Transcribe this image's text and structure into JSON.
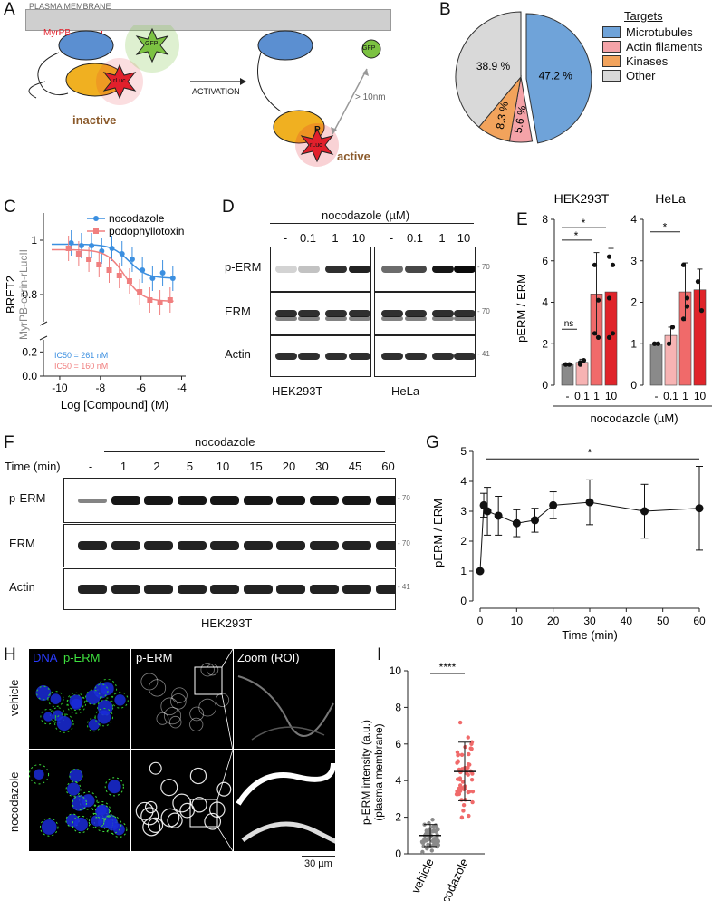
{
  "panels": {
    "A": "A",
    "B": "B",
    "C": "C",
    "D": "D",
    "E": "E",
    "F": "F",
    "G": "G",
    "H": "H",
    "I": "I"
  },
  "panelA": {
    "membrane": "PLASMA MEMBRANE",
    "myrpb": "MyrPB",
    "gfp": "GFP",
    "rluc": "rLuc",
    "activation": "ACTIVATION",
    "inactive": "inactive",
    "active": "active",
    "p": "P",
    "distance": "> 10nm",
    "colors": {
      "blue": "#5b8fd1",
      "orange": "#f0b021",
      "red": "#e2202c",
      "green": "#7cc242",
      "brown": "#8b5a2b"
    }
  },
  "panelB": {
    "legend_title": "Targets",
    "chart_data": {
      "type": "pie",
      "categories": [
        "Microtubules",
        "Actin filaments",
        "Kinases",
        "Other"
      ],
      "values": [
        47.2,
        5.6,
        8.3,
        38.9
      ],
      "value_labels": [
        "47.2 %",
        "5.6 %",
        "8.3 %",
        "38.9 %"
      ],
      "colors": [
        "#6fa3d9",
        "#f4a3a8",
        "#f2a35c",
        "#d9d9d9"
      ],
      "legend_position": "right"
    }
  },
  "panelC": {
    "chart_data": {
      "type": "line",
      "xlabel": "Log [Compound] (M)",
      "ylabel": "BRET2",
      "ylabel2": "MyrPB-ezrin-rLucII",
      "xticks": [
        "-10",
        "-8",
        "-6",
        "-4"
      ],
      "yticks": [
        "1",
        "0.8",
        "0.2",
        "0.0"
      ],
      "series": [
        {
          "name": "nocodazole",
          "color": "#3b8fe0",
          "x": [
            -9.5,
            -9,
            -8.5,
            -8,
            -7.5,
            -7,
            -6.5,
            -6,
            -5.5,
            -5,
            -4.5
          ],
          "y": [
            0.99,
            0.98,
            0.98,
            0.96,
            0.97,
            0.95,
            0.93,
            0.89,
            0.86,
            0.88,
            0.86
          ]
        },
        {
          "name": "podophyllotoxin",
          "color": "#f07f7f",
          "x": [
            -9.5,
            -9,
            -8.5,
            -8,
            -7.5,
            -7,
            -6.5,
            -6,
            -5.5,
            -5,
            -4.5
          ],
          "y": [
            0.97,
            0.95,
            0.93,
            0.91,
            0.89,
            0.87,
            0.85,
            0.81,
            0.78,
            0.77,
            0.78
          ]
        }
      ],
      "ic50": [
        "IC50 = 261 nM",
        "IC50 = 160 nM"
      ]
    }
  },
  "panelD": {
    "header": "nocodazole (µM)",
    "lanes": [
      "-",
      "0.1",
      "1",
      "10",
      "-",
      "0.1",
      "1",
      "10"
    ],
    "rows": [
      "p-ERM",
      "ERM",
      "Actin"
    ],
    "mw": [
      "70",
      "70",
      "41"
    ],
    "cells": [
      "HEK293T",
      "HeLa"
    ]
  },
  "panelE": {
    "titles": [
      "HEK293T",
      "HeLa"
    ],
    "ylabel": "pERM / ERM",
    "xlabel": "nocodazole (µM)",
    "xticks": [
      "-",
      "0.1",
      "1",
      "10"
    ],
    "sig": [
      "ns",
      "*",
      "*",
      "*"
    ],
    "chart_data": {
      "type": "bar",
      "categories": [
        "-",
        "0.1",
        "1",
        "10"
      ],
      "series": [
        {
          "name": "HEK293T",
          "values": [
            1.0,
            1.1,
            4.4,
            4.5
          ]
        },
        {
          "name": "HeLa",
          "values": [
            1.0,
            1.2,
            2.25,
            2.3
          ]
        }
      ],
      "ylim_hek": [
        0,
        8
      ],
      "ylim_hela": [
        0,
        4
      ],
      "colors": [
        "#8a8a8a",
        "#f7b3b3",
        "#f06a6a",
        "#e0242a"
      ]
    }
  },
  "panelF": {
    "header": "nocodazole",
    "time_label": "Time (min)",
    "lanes": [
      "-",
      "1",
      "2",
      "5",
      "10",
      "15",
      "20",
      "30",
      "45",
      "60"
    ],
    "rows": [
      "p-ERM",
      "ERM",
      "Actin"
    ],
    "mw": [
      "70",
      "70",
      "41"
    ],
    "cell": "HEK293T"
  },
  "panelG": {
    "chart_data": {
      "type": "line",
      "xlabel": "Time (min)",
      "ylabel": "pERM / ERM",
      "x": [
        0,
        1,
        2,
        5,
        10,
        15,
        20,
        30,
        45,
        60
      ],
      "y": [
        1.0,
        3.2,
        3.0,
        2.85,
        2.6,
        2.7,
        3.2,
        3.3,
        3.0,
        3.1
      ],
      "xticks": [
        "0",
        "10",
        "20",
        "30",
        "40",
        "50",
        "60"
      ],
      "yticks": [
        "0",
        "1",
        "2",
        "3",
        "4",
        "5"
      ],
      "sig": "*"
    }
  },
  "panelH": {
    "dna": "DNA",
    "perm": "p-ERM",
    "perm2": "p-ERM",
    "zoom": "Zoom (ROI)",
    "vehicle": "vehicle",
    "nocodazole": "nocodazole",
    "scale": "30 µm"
  },
  "panelI": {
    "ylabel": "p-ERM intensity (a.u.)",
    "ylabel2": "(plasma membrane)",
    "yticks": [
      "0",
      "2",
      "4",
      "6",
      "8",
      "10"
    ],
    "categories": [
      "vehicle",
      "nocodazole"
    ],
    "sig": "****",
    "chart_data": {
      "type": "scatter",
      "categories": [
        "vehicle",
        "nocodazole"
      ],
      "means": [
        1.0,
        4.5
      ],
      "sd": [
        0.6,
        1.6
      ],
      "ylim": [
        0,
        10
      ],
      "colors": [
        "#8a8a8a",
        "#f06a6a"
      ]
    }
  }
}
